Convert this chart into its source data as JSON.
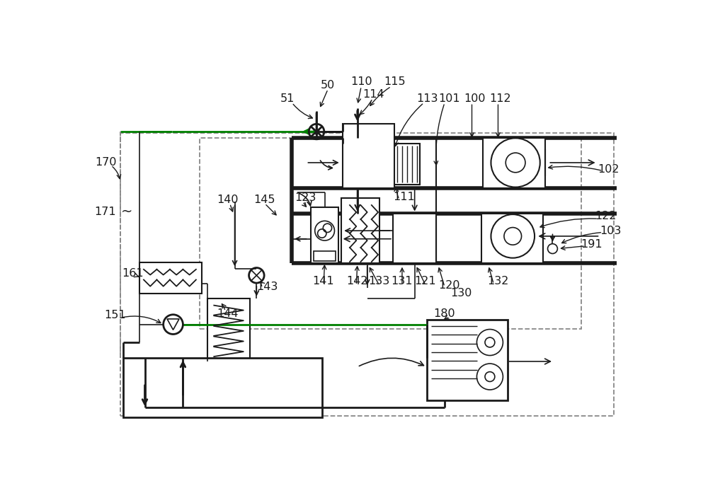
{
  "bg_color": "#ffffff",
  "line_color": "#1a1a1a",
  "green_color": "#008000",
  "dashed_color": "#888888",
  "fig_width": 10.0,
  "fig_height": 6.97
}
